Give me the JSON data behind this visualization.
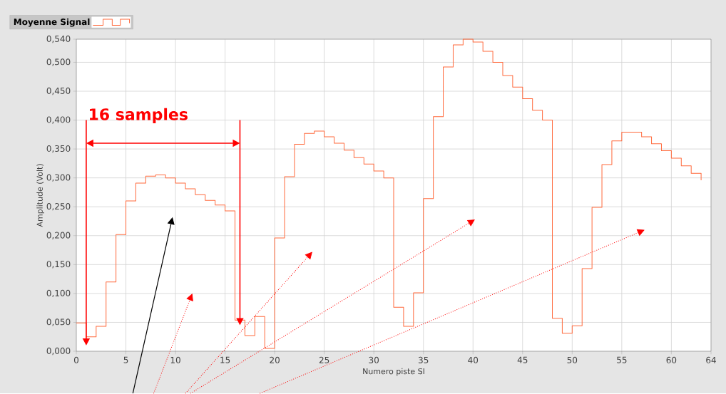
{
  "chart_data": {
    "type": "step",
    "xlabel": "Numero piste SI",
    "ylabel": "Amplitude (Volt)",
    "x": [
      0,
      1,
      2,
      3,
      4,
      5,
      6,
      7,
      8,
      9,
      10,
      11,
      12,
      13,
      14,
      15,
      16,
      17,
      18,
      19,
      20,
      21,
      22,
      23,
      24,
      25,
      26,
      27,
      28,
      29,
      30,
      31,
      32,
      33,
      34,
      35,
      36,
      37,
      38,
      39,
      40,
      41,
      42,
      43,
      44,
      45,
      46,
      47,
      48,
      49,
      50,
      51,
      52,
      53,
      54,
      55,
      56,
      57,
      58,
      59,
      60,
      61,
      62,
      63
    ],
    "series": [
      {
        "name": "Moyenne Signal",
        "color": "#ff6a3d",
        "values": [
          0.049,
          0.025,
          0.043,
          0.12,
          0.202,
          0.26,
          0.291,
          0.303,
          0.305,
          0.3,
          0.291,
          0.281,
          0.271,
          0.261,
          0.253,
          0.243,
          0.054,
          0.027,
          0.06,
          0.005,
          0.196,
          0.302,
          0.358,
          0.377,
          0.381,
          0.371,
          0.36,
          0.348,
          0.335,
          0.324,
          0.312,
          0.3,
          0.076,
          0.043,
          0.101,
          0.264,
          0.406,
          0.492,
          0.53,
          0.54,
          0.535,
          0.519,
          0.5,
          0.477,
          0.457,
          0.437,
          0.417,
          0.4,
          0.057,
          0.031,
          0.044,
          0.143,
          0.249,
          0.323,
          0.364,
          0.379,
          0.379,
          0.371,
          0.359,
          0.347,
          0.334,
          0.321,
          0.308,
          0.296
        ]
      }
    ],
    "xlim": [
      0,
      64
    ],
    "ylim": [
      0,
      0.54
    ],
    "xticks": [
      0,
      5,
      10,
      15,
      20,
      25,
      30,
      35,
      40,
      45,
      50,
      55,
      60,
      64
    ],
    "yticks": [
      {
        "value": 0,
        "label": "0,000"
      },
      {
        "value": 0.05,
        "label": "0,050"
      },
      {
        "value": 0.1,
        "label": "0,100"
      },
      {
        "value": 0.15,
        "label": "0,150"
      },
      {
        "value": 0.2,
        "label": "0,200"
      },
      {
        "value": 0.25,
        "label": "0,250"
      },
      {
        "value": 0.3,
        "label": "0,300"
      },
      {
        "value": 0.35,
        "label": "0,350"
      },
      {
        "value": 0.4,
        "label": "0,400"
      },
      {
        "value": 0.45,
        "label": "0,450"
      },
      {
        "value": 0.5,
        "label": "0,500"
      },
      {
        "value": 0.54,
        "label": "0,540"
      }
    ],
    "grid": true,
    "legend": "top left",
    "annotations": [
      "16 samples"
    ]
  }
}
